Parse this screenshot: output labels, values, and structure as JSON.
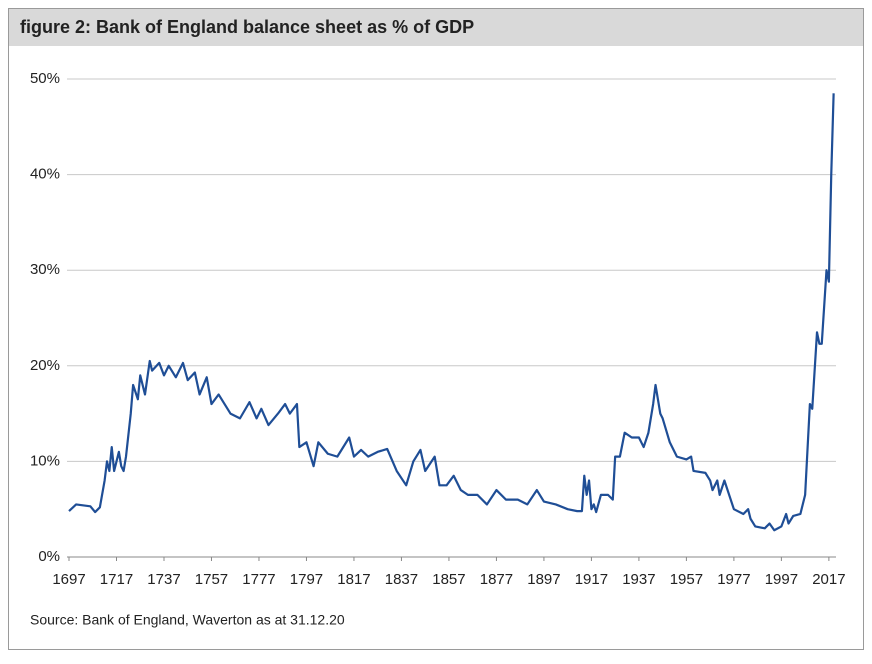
{
  "chart_data": {
    "type": "line",
    "title": "figure 2: Bank of England balance sheet as % of GDP",
    "source": "Source: Bank of England, Waverton as at 31.12.20",
    "x": [
      1697,
      1700,
      1706,
      1708,
      1710,
      1712,
      1713,
      1714,
      1715,
      1716,
      1718,
      1719,
      1720,
      1721,
      1723,
      1724,
      1726,
      1727,
      1729,
      1731,
      1732,
      1735,
      1737,
      1739,
      1742,
      1745,
      1747,
      1750,
      1752,
      1755,
      1757,
      1760,
      1765,
      1769,
      1773,
      1776,
      1778,
      1781,
      1785,
      1788,
      1790,
      1793,
      1794,
      1797,
      1800,
      1802,
      1806,
      1810,
      1815,
      1817,
      1820,
      1823,
      1827,
      1831,
      1835,
      1839,
      1842,
      1845,
      1847,
      1851,
      1853,
      1856,
      1859,
      1862,
      1865,
      1869,
      1873,
      1877,
      1881,
      1886,
      1890,
      1894,
      1897,
      1902,
      1907,
      1911,
      1913,
      1914,
      1915,
      1916,
      1917,
      1918,
      1919,
      1921,
      1924,
      1926,
      1927,
      1929,
      1931,
      1934,
      1937,
      1939,
      1941,
      1943,
      1944,
      1946,
      1947,
      1950,
      1953,
      1957,
      1959,
      1960,
      1965,
      1967,
      1968,
      1970,
      1971,
      1973,
      1977,
      1981,
      1983,
      1984,
      1986,
      1990,
      1992,
      1994,
      1997,
      1999,
      2000,
      2002,
      2005,
      2007,
      2009,
      2010,
      2012,
      2013,
      2014,
      2016,
      2017,
      2018,
      2019
    ],
    "series": [
      {
        "name": "Bank of England balance sheet",
        "color": "#1f4e96",
        "values": [
          4.8,
          5.5,
          5.3,
          4.7,
          5.2,
          8,
          10,
          9,
          11.5,
          9,
          11,
          9.5,
          9,
          10.5,
          15,
          18,
          16.5,
          19,
          17,
          20.5,
          19.5,
          20.3,
          19,
          20,
          18.8,
          20.3,
          18.5,
          19.3,
          17,
          18.8,
          16,
          17,
          15,
          14.5,
          16.2,
          14.5,
          15.5,
          13.8,
          15,
          16,
          15,
          16,
          11.5,
          12,
          9.5,
          12,
          10.8,
          10.5,
          12.5,
          10.5,
          11.2,
          10.5,
          11,
          11.3,
          9,
          7.5,
          10,
          11.2,
          9,
          10.5,
          7.5,
          7.5,
          8.5,
          7,
          6.5,
          6.5,
          5.5,
          7,
          6,
          6,
          5.5,
          7,
          5.8,
          5.5,
          5,
          4.8,
          4.8,
          8.5,
          6.5,
          8,
          5,
          5.5,
          4.7,
          6.5,
          6.5,
          6,
          10.5,
          10.5,
          13,
          12.5,
          12.5,
          11.5,
          13,
          16,
          18,
          15,
          14.5,
          12,
          10.5,
          10.2,
          10.5,
          9,
          8.8,
          8,
          7,
          8,
          6.5,
          8,
          5,
          4.5,
          5,
          4,
          3.2,
          3,
          3.5,
          2.8,
          3.2,
          4.5,
          3.5,
          4.3,
          4.5,
          6.5,
          16,
          15.5,
          23.5,
          22.3,
          22.3,
          30,
          28.8,
          40,
          48.5
        ]
      }
    ],
    "xlim": [
      1697,
      2020
    ],
    "xticks": [
      1697,
      1717,
      1737,
      1757,
      1777,
      1797,
      1817,
      1837,
      1857,
      1877,
      1897,
      1917,
      1937,
      1957,
      1977,
      1997,
      2017
    ],
    "ylim": [
      0,
      50
    ],
    "yticks": [
      {
        "value": 0,
        "label": "0%"
      },
      {
        "value": 10,
        "label": "10%"
      },
      {
        "value": 20,
        "label": "20%"
      },
      {
        "value": 30,
        "label": "30%"
      },
      {
        "value": 40,
        "label": "40%"
      },
      {
        "value": 50,
        "label": "50%"
      }
    ],
    "grid": true
  }
}
